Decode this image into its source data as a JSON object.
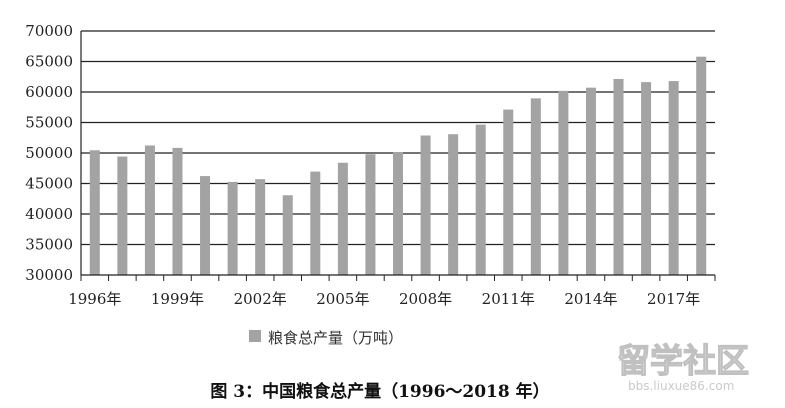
{
  "chart_data": {
    "type": "bar",
    "categories": [
      "1996",
      "1997",
      "1998",
      "1999",
      "2000",
      "2001",
      "2002",
      "2003",
      "2004",
      "2005",
      "2006",
      "2007",
      "2008",
      "2009",
      "2010",
      "2011",
      "2012",
      "2013",
      "2014",
      "2015",
      "2016",
      "2017",
      "2018"
    ],
    "x_tick_labels": [
      "1996年",
      "1999年",
      "2002年",
      "2005年",
      "2008年",
      "2011年",
      "2014年",
      "2017年"
    ],
    "series": [
      {
        "name": "粮食总产量（万吨）",
        "values": [
          50450,
          49420,
          51230,
          50840,
          46220,
          45260,
          45710,
          43070,
          46950,
          48400,
          49800,
          50160,
          52870,
          53080,
          54650,
          57120,
          58960,
          60190,
          60710,
          62140,
          61620,
          61790,
          65790
        ],
        "color": "#a3a3a3"
      }
    ],
    "ylim": [
      30000,
      70000
    ],
    "y_ticks": [
      30000,
      35000,
      40000,
      45000,
      50000,
      55000,
      60000,
      65000,
      70000
    ],
    "grid": "horizontal",
    "legend_position": "bottom-left",
    "caption": "图 3：中国粮食总产量（1996～2018 年）"
  },
  "watermark": {
    "main": "留学社区",
    "sub": "bbs.liuxue86.com"
  }
}
